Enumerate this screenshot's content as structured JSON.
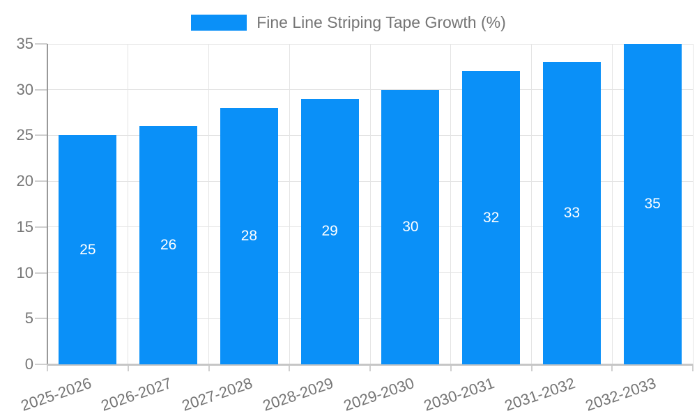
{
  "legend": {
    "label": "Fine Line Striping Tape Growth (%)"
  },
  "chart_data": {
    "type": "bar",
    "title": "Fine Line Striping Tape Growth (%)",
    "categories": [
      "2025-2026",
      "2026-2027",
      "2027-2028",
      "2028-2029",
      "2029-2030",
      "2030-2031",
      "2031-2032",
      "2032-2033"
    ],
    "series": [
      {
        "name": "Fine Line Striping Tape Growth (%)",
        "values": [
          25,
          26,
          28,
          29,
          30,
          32,
          33,
          35
        ]
      }
    ],
    "data_labels": [
      "25",
      "26",
      "28",
      "29",
      "30",
      "32",
      "33",
      "35"
    ],
    "xlabel": "",
    "ylabel": "",
    "ylim": [
      0,
      35
    ],
    "yticks": [
      0,
      5,
      10,
      15,
      20,
      25,
      30,
      35
    ],
    "grid": true,
    "legend_position": "top-center",
    "bar_color": "#0A90F8",
    "bar_label_color": "#ffffff",
    "axis_text_color": "#757575",
    "grid_color": "#e4e4e4",
    "axis_line_color": "#999999",
    "baseline_color": "#c6c6c6",
    "tick_color": "#cfcfcf",
    "x_label_rotation_deg": -19
  }
}
